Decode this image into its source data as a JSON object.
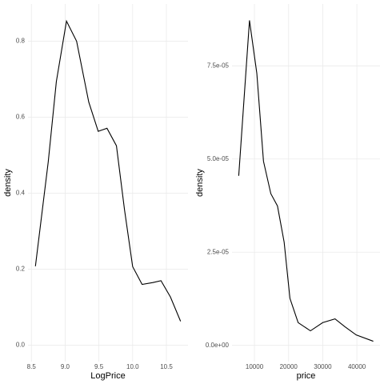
{
  "chart_data": [
    {
      "type": "line",
      "x_label": "LogPrice",
      "y_label": "density",
      "x": [
        8.56,
        8.75,
        8.87,
        9.02,
        9.17,
        9.35,
        9.49,
        9.62,
        9.76,
        9.88,
        10.0,
        10.14,
        10.3,
        10.42,
        10.56,
        10.71
      ],
      "series": [
        {
          "name": "density",
          "color": "#000000",
          "values": [
            0.208,
            0.483,
            0.694,
            0.853,
            0.8,
            0.64,
            0.563,
            0.571,
            0.525,
            0.356,
            0.207,
            0.16,
            0.165,
            0.17,
            0.127,
            0.063
          ]
        }
      ],
      "xlim": [
        8.45,
        10.82
      ],
      "ylim": [
        -0.043,
        0.898
      ],
      "xticks": [
        8.5,
        {
          "value": 9,
          "label": "9.0"
        },
        9.5,
        {
          "value": 10,
          "label": "10.0"
        },
        10.5
      ],
      "yticks": [
        {
          "value": 0,
          "label": "0.0"
        },
        0.2,
        0.4,
        0.6,
        0.8
      ],
      "grid": true
    },
    {
      "type": "line",
      "x_label": "price",
      "y_label": "density",
      "x": [
        5400,
        8550,
        10700,
        12650,
        14800,
        16750,
        18700,
        20400,
        22800,
        26400,
        30000,
        33600,
        36500,
        39800,
        44800
      ],
      "series": [
        {
          "name": "density",
          "color": "#000000",
          "values": [
            4.55e-05,
            8.72e-05,
            7.3e-05,
            4.94e-05,
            4.07e-05,
            3.74e-05,
            2.77e-05,
            1.26e-05,
            6.1e-06,
            3.9e-06,
            6.1e-06,
            7.1e-06,
            5e-06,
            2.8e-06,
            1.1e-06
          ]
        }
      ],
      "xlim": [
        3430,
        46770
      ],
      "ylim": [
        -4.36e-06,
        9.16e-05
      ],
      "xticks": [
        10000,
        20000,
        30000,
        40000
      ],
      "yticks": [
        {
          "value": 0,
          "label": "0.0e+00"
        },
        {
          "value": 2.5e-05,
          "label": "2.5e-05"
        },
        {
          "value": 5e-05,
          "label": "5.0e-05"
        },
        {
          "value": 7.5e-05,
          "label": "7.5e-05"
        }
      ],
      "grid": true
    }
  ]
}
